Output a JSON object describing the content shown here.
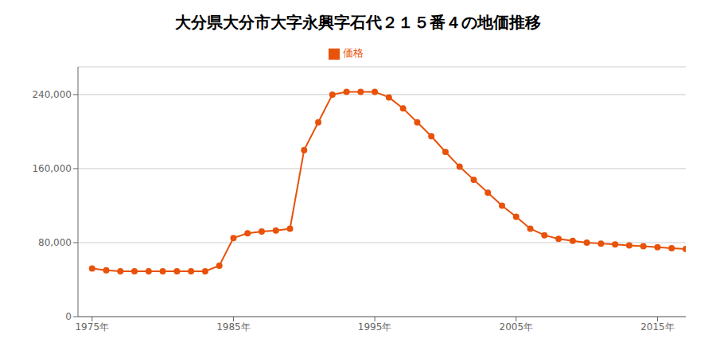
{
  "chart_data": {
    "type": "line",
    "title": "大分県大分市大字永興字石代２１５番４の地価推移",
    "x": [
      1975,
      1976,
      1977,
      1978,
      1979,
      1980,
      1981,
      1982,
      1983,
      1984,
      1985,
      1986,
      1987,
      1988,
      1989,
      1990,
      1991,
      1992,
      1993,
      1994,
      1995,
      1996,
      1997,
      1998,
      1999,
      2000,
      2001,
      2002,
      2003,
      2004,
      2005,
      2006,
      2007,
      2008,
      2009,
      2010,
      2011,
      2012,
      2013,
      2014,
      2015,
      2016,
      2017
    ],
    "series": [
      {
        "name": "価格",
        "color": "#e8520a",
        "marker": "circle",
        "values": [
          52000,
          50000,
          49000,
          49000,
          49000,
          49000,
          49000,
          49000,
          49000,
          55000,
          85000,
          90000,
          92000,
          93000,
          95000,
          180000,
          210000,
          240000,
          243000,
          243000,
          243000,
          237000,
          225000,
          210000,
          195000,
          178000,
          162000,
          148000,
          134000,
          120000,
          108000,
          95000,
          88000,
          84000,
          82000,
          80000,
          79000,
          78000,
          77000,
          76000,
          75000,
          74000,
          73000
        ]
      }
    ],
    "xlim": [
      1974,
      2017
    ],
    "xticks": [
      {
        "value": 1975,
        "label": "1975年"
      },
      {
        "value": 1985,
        "label": "1985年"
      },
      {
        "value": 1995,
        "label": "1995年"
      },
      {
        "value": 2005,
        "label": "2005年"
      },
      {
        "value": 2015,
        "label": "2015年"
      }
    ],
    "ylim": [
      0,
      270000
    ],
    "yticks": [
      0,
      {
        "value": 80000,
        "label": "80,000"
      },
      {
        "value": 160000,
        "label": "160,000"
      },
      {
        "value": 240000,
        "label": "240,000"
      }
    ],
    "grid": true,
    "legend": "top"
  }
}
